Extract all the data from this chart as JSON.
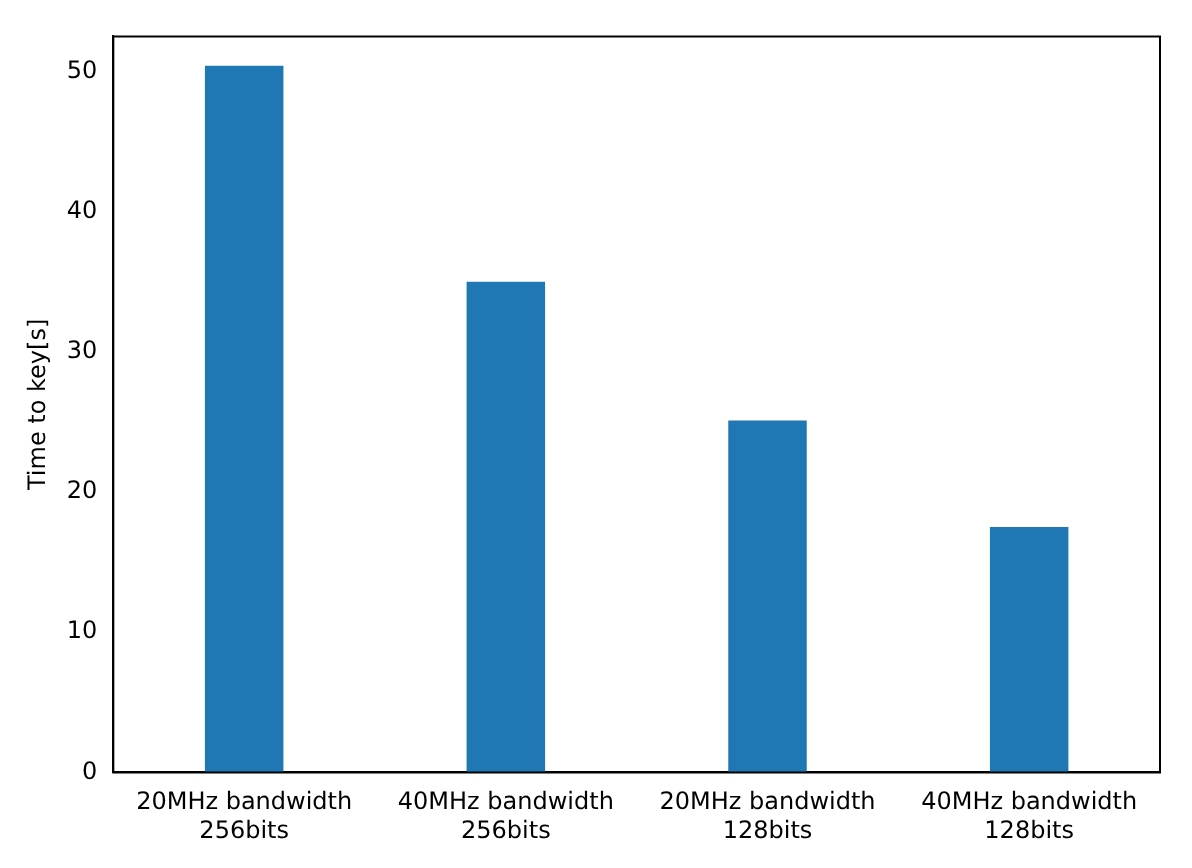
{
  "chart_data": {
    "type": "bar",
    "ylabel": "Time to key[s]",
    "categories": [
      "20MHz bandwidth\n256bits",
      "40MHz bandwidth\n256bits",
      "20MHz bandwidth\n128bits",
      "40MHz bandwidth\n128bits"
    ],
    "values": [
      50.4,
      35.0,
      25.1,
      17.5
    ],
    "color": "#1f77b4",
    "ylim": [
      0,
      52.5
    ],
    "yticks": [
      0,
      10,
      20,
      30,
      40,
      50
    ],
    "grid": false,
    "legend": false
  }
}
